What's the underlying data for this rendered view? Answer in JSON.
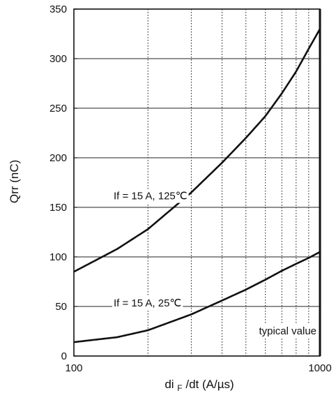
{
  "chart_data": {
    "type": "line",
    "title": "",
    "xscale": "log",
    "xlim": [
      100,
      1000
    ],
    "ylim": [
      0,
      350
    ],
    "xticks": [
      100,
      1000
    ],
    "xtick_labels": [
      "100",
      "1000"
    ],
    "yticks": [
      0,
      50,
      100,
      150,
      200,
      250,
      300,
      350
    ],
    "ytick_labels": [
      "0",
      "50",
      "100",
      "150",
      "200",
      "250",
      "300",
      "350"
    ],
    "xminor_gridlines": [
      200,
      300,
      400,
      500,
      600,
      700,
      800,
      900
    ],
    "grid": true,
    "xlabel": {
      "prefix": "di",
      "subscript": "F",
      "suffix": "/dt  (A/µs)"
    },
    "ylabel": "Qrr (nC)",
    "series": [
      {
        "name": "If = 15 A, 125℃",
        "x": [
          100,
          150,
          200,
          300,
          400,
          500,
          600,
          700,
          800,
          900,
          1000
        ],
        "y": [
          85,
          108,
          128,
          165,
          195,
          220,
          242,
          265,
          287,
          310,
          330
        ]
      },
      {
        "name": "If = 15 A, 25℃",
        "x": [
          100,
          150,
          200,
          300,
          400,
          500,
          600,
          700,
          800,
          900,
          1000
        ],
        "y": [
          14,
          19,
          26,
          42,
          56,
          67,
          77,
          86,
          93,
          99,
          105
        ]
      }
    ],
    "annotations": [
      {
        "text": "If = 15 A, 125℃",
        "x": 145,
        "y": 158
      },
      {
        "text": "If = 15 A, 25℃",
        "x": 145,
        "y": 50
      },
      {
        "text": "typical value",
        "x": 565,
        "y": 22
      }
    ]
  }
}
